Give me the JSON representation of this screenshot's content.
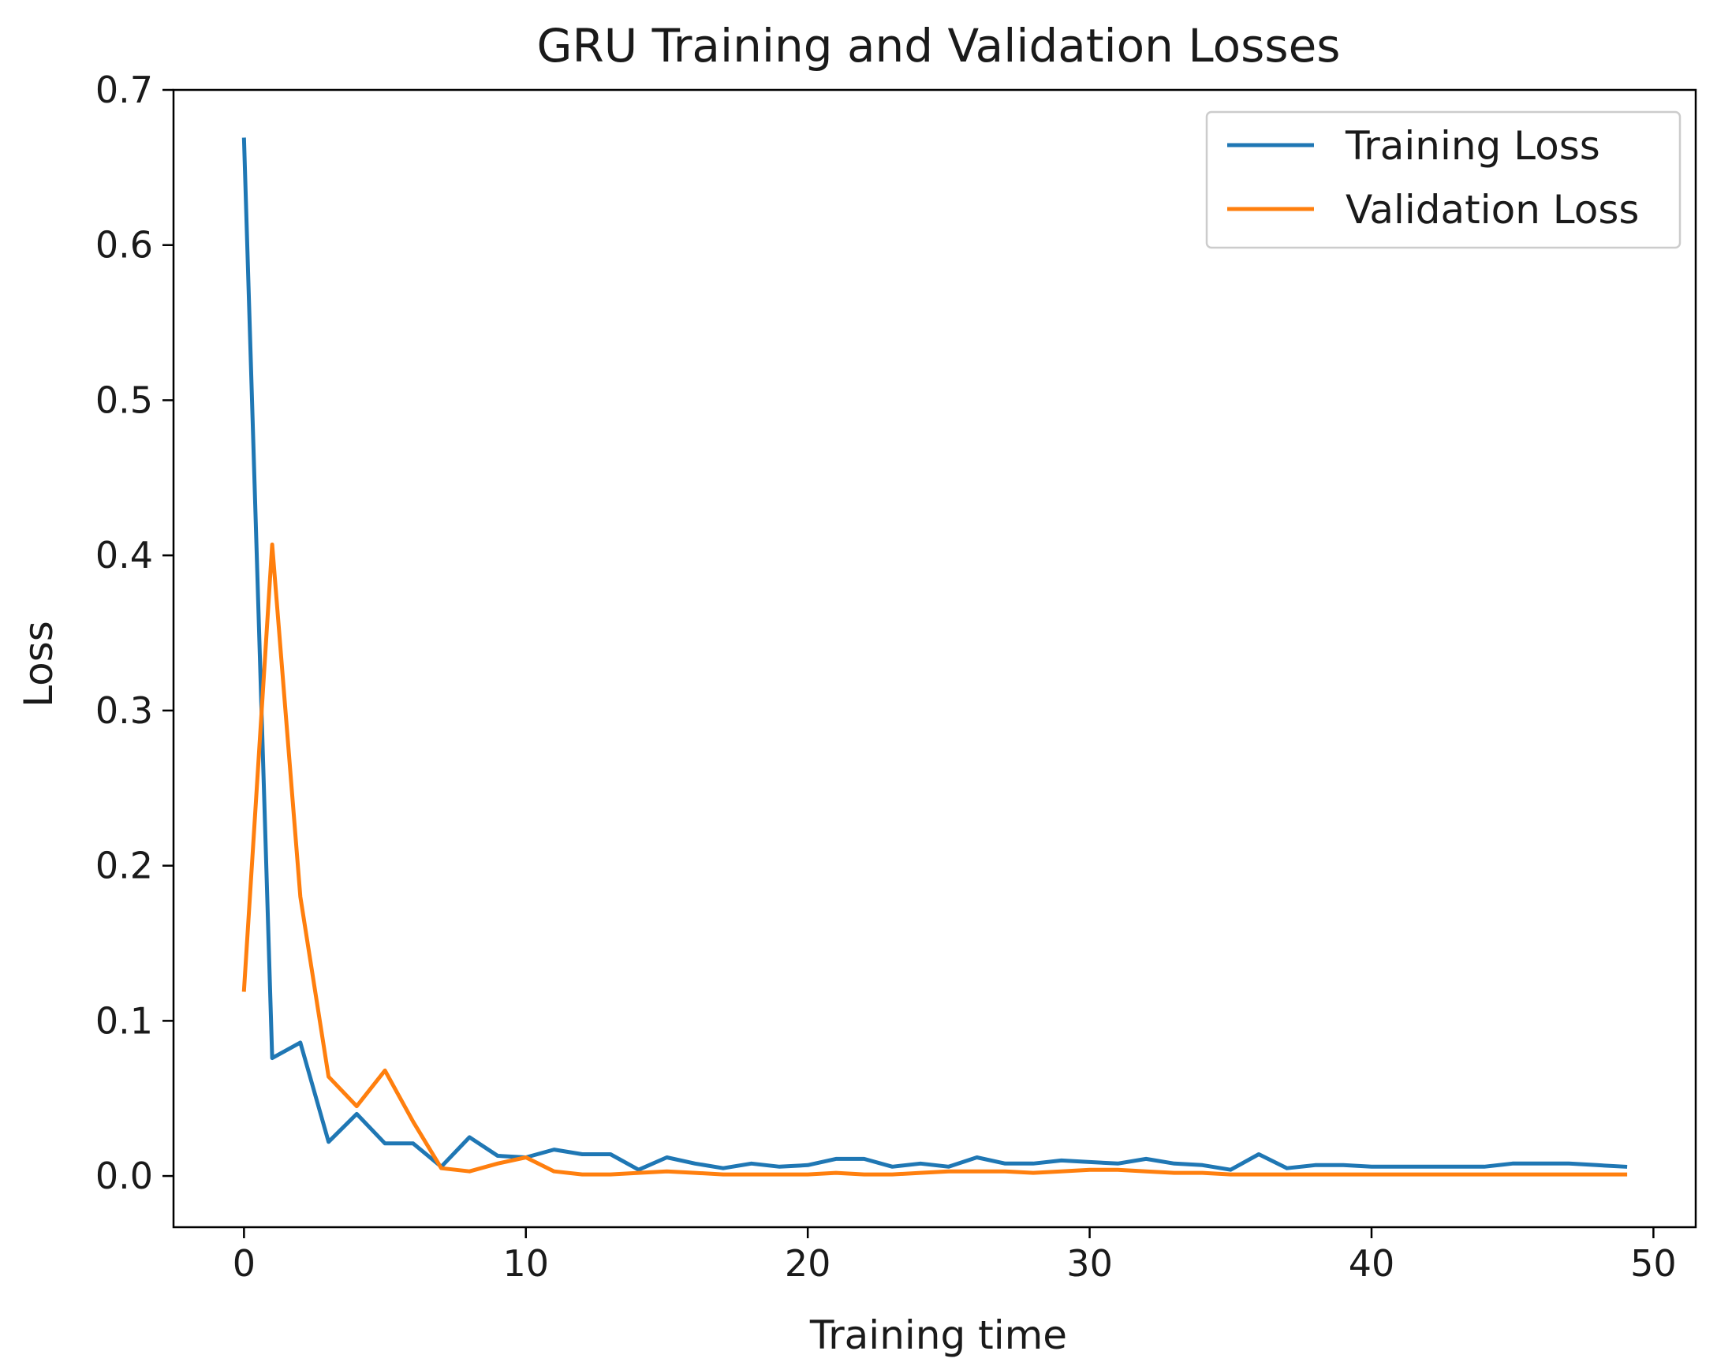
{
  "chart_data": {
    "type": "line",
    "title": "GRU Training and Validation Losses",
    "xlabel": "Training time",
    "ylabel": "Loss",
    "xlim": [
      -2.5,
      51.5
    ],
    "ylim": [
      -0.033,
      0.7
    ],
    "xticks": [
      0,
      10,
      20,
      30,
      40,
      50
    ],
    "yticks": [
      0.0,
      0.1,
      0.2,
      0.3,
      0.4,
      0.5,
      0.6,
      0.7
    ],
    "ytick_labels": [
      "0.0",
      "0.1",
      "0.2",
      "0.3",
      "0.4",
      "0.5",
      "0.6",
      "0.7"
    ],
    "grid": false,
    "legend": "top-right",
    "x": [
      0,
      1,
      2,
      3,
      4,
      5,
      6,
      7,
      8,
      9,
      10,
      11,
      12,
      13,
      14,
      15,
      16,
      17,
      18,
      19,
      20,
      21,
      22,
      23,
      24,
      25,
      26,
      27,
      28,
      29,
      30,
      31,
      32,
      33,
      34,
      35,
      36,
      37,
      38,
      39,
      40,
      41,
      42,
      43,
      44,
      45,
      46,
      47,
      48,
      49
    ],
    "series": [
      {
        "name": "Training Loss",
        "color": "#1f77b4",
        "values": [
          0.668,
          0.076,
          0.086,
          0.022,
          0.04,
          0.021,
          0.021,
          0.006,
          0.025,
          0.013,
          0.012,
          0.017,
          0.014,
          0.014,
          0.004,
          0.012,
          0.008,
          0.005,
          0.008,
          0.006,
          0.007,
          0.011,
          0.011,
          0.006,
          0.008,
          0.006,
          0.012,
          0.008,
          0.008,
          0.01,
          0.009,
          0.008,
          0.011,
          0.008,
          0.007,
          0.004,
          0.014,
          0.005,
          0.007,
          0.007,
          0.006,
          0.006,
          0.006,
          0.006,
          0.006,
          0.008,
          0.008,
          0.008,
          0.007,
          0.006
        ]
      },
      {
        "name": "Validation Loss",
        "color": "#ff7f0e",
        "values": [
          0.12,
          0.407,
          0.18,
          0.064,
          0.045,
          0.068,
          0.035,
          0.005,
          0.003,
          0.008,
          0.012,
          0.003,
          0.001,
          0.001,
          0.002,
          0.003,
          0.002,
          0.001,
          0.001,
          0.001,
          0.001,
          0.002,
          0.001,
          0.001,
          0.002,
          0.003,
          0.003,
          0.003,
          0.002,
          0.003,
          0.004,
          0.004,
          0.003,
          0.002,
          0.002,
          0.001,
          0.001,
          0.001,
          0.001,
          0.001,
          0.001,
          0.001,
          0.001,
          0.001,
          0.001,
          0.001,
          0.001,
          0.001,
          0.001,
          0.001
        ]
      }
    ]
  }
}
